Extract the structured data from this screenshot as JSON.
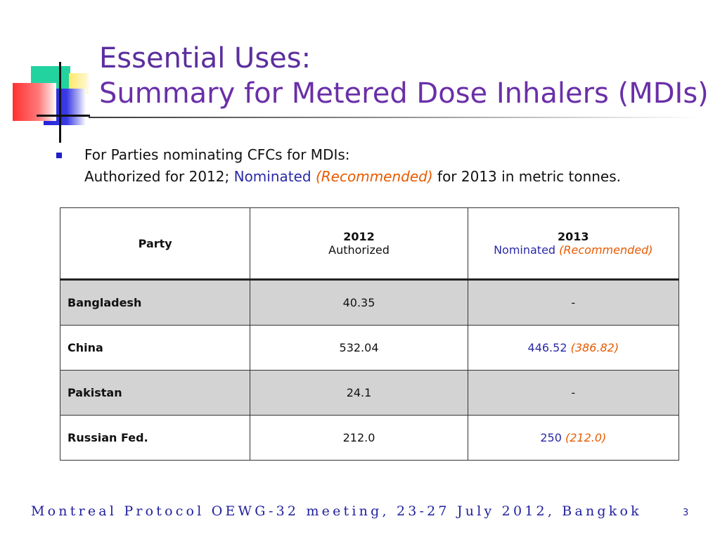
{
  "title": {
    "line1": "Essential Uses:",
    "line2": "Summary for Metered Dose Inhalers (MDIs)"
  },
  "bullet": {
    "line1": "For Parties nominating CFCs for MDIs:",
    "line2_prefix": "Authorized for 2012; ",
    "line2_nominated": "Nominated",
    "line2_recommended": "(Recommended)",
    "line2_suffix": " for 2013 in metric tonnes."
  },
  "table": {
    "headers": {
      "party": "Party",
      "col2_year": "2012",
      "col2_sub": "Authorized",
      "col3_year": "2013",
      "col3_nominated": "Nominated",
      "col3_recommended": "(Recommended)"
    },
    "rows": [
      {
        "party": "Bangladesh",
        "authorized_2012": "40.35",
        "nominated_2013": "-",
        "recommended_2013": ""
      },
      {
        "party": "China",
        "authorized_2012": "532.04",
        "nominated_2013": "446.52",
        "recommended_2013": "(386.82)"
      },
      {
        "party": "Pakistan",
        "authorized_2012": "24.1",
        "nominated_2013": "-",
        "recommended_2013": ""
      },
      {
        "party": "Russian Fed.",
        "authorized_2012": "212.0",
        "nominated_2013": "250",
        "recommended_2013": "(212.0)"
      }
    ]
  },
  "footer": {
    "text": "Montreal Protocol OEWG-32 meeting, 23-27 July 2012, Bangkok",
    "page_number": "3"
  },
  "colors": {
    "title": "#5b2f9e",
    "nominated": "#2a2aa8",
    "recommended": "#e85a00",
    "footer": "#1f1f9e",
    "shaded_row": "#d3d3d3"
  }
}
